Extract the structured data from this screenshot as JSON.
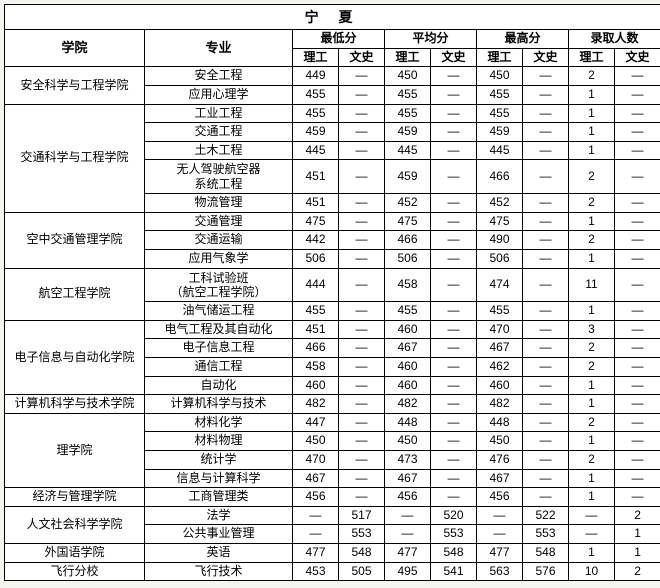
{
  "region": "宁 夏",
  "headers": {
    "college": "学院",
    "major": "专业",
    "groups": [
      "最低分",
      "平均分",
      "最高分",
      "录取人数"
    ],
    "subs": [
      "理工",
      "文史"
    ]
  },
  "colleges": [
    {
      "name": "安全科学与工程学院",
      "rows": [
        {
          "m": "安全工程",
          "v": [
            "449",
            "—",
            "450",
            "—",
            "450",
            "—",
            "2",
            "—"
          ]
        },
        {
          "m": "应用心理学",
          "v": [
            "455",
            "—",
            "455",
            "—",
            "455",
            "—",
            "1",
            "—"
          ]
        }
      ]
    },
    {
      "name": "交通科学与工程学院",
      "rows": [
        {
          "m": "工业工程",
          "v": [
            "455",
            "—",
            "455",
            "—",
            "455",
            "—",
            "1",
            "—"
          ]
        },
        {
          "m": "交通工程",
          "v": [
            "459",
            "—",
            "459",
            "—",
            "459",
            "—",
            "1",
            "—"
          ]
        },
        {
          "m": "土木工程",
          "v": [
            "445",
            "—",
            "445",
            "—",
            "445",
            "—",
            "1",
            "—"
          ]
        },
        {
          "m": "无人驾驶航空器\n系统工程",
          "ml": true,
          "v": [
            "451",
            "—",
            "459",
            "—",
            "466",
            "—",
            "2",
            "—"
          ]
        },
        {
          "m": "物流管理",
          "v": [
            "451",
            "—",
            "452",
            "—",
            "452",
            "—",
            "2",
            "—"
          ]
        }
      ]
    },
    {
      "name": "空中交通管理学院",
      "rows": [
        {
          "m": "交通管理",
          "v": [
            "475",
            "—",
            "475",
            "—",
            "475",
            "—",
            "1",
            "—"
          ]
        },
        {
          "m": "交通运输",
          "v": [
            "442",
            "—",
            "466",
            "—",
            "490",
            "—",
            "2",
            "—"
          ]
        },
        {
          "m": "应用气象学",
          "v": [
            "506",
            "—",
            "506",
            "—",
            "506",
            "—",
            "1",
            "—"
          ]
        }
      ]
    },
    {
      "name": "航空工程学院",
      "rows": [
        {
          "m": "工科试验班\n（航空工程学院）",
          "ml": true,
          "v": [
            "444",
            "—",
            "458",
            "—",
            "474",
            "—",
            "11",
            "—"
          ]
        },
        {
          "m": "油气储运工程",
          "v": [
            "455",
            "—",
            "455",
            "—",
            "455",
            "—",
            "1",
            "—"
          ]
        }
      ]
    },
    {
      "name": "电子信息与自动化学院",
      "rows": [
        {
          "m": "电气工程及其自动化",
          "v": [
            "451",
            "—",
            "460",
            "—",
            "470",
            "—",
            "3",
            "—"
          ]
        },
        {
          "m": "电子信息工程",
          "v": [
            "466",
            "—",
            "467",
            "—",
            "467",
            "—",
            "2",
            "—"
          ]
        },
        {
          "m": "通信工程",
          "v": [
            "458",
            "—",
            "460",
            "—",
            "462",
            "—",
            "2",
            "—"
          ]
        },
        {
          "m": "自动化",
          "v": [
            "460",
            "—",
            "460",
            "—",
            "460",
            "—",
            "1",
            "—"
          ]
        }
      ]
    },
    {
      "name": "计算机科学与技术学院",
      "rows": [
        {
          "m": "计算机科学与技术",
          "v": [
            "482",
            "—",
            "482",
            "—",
            "482",
            "—",
            "1",
            "—"
          ]
        }
      ]
    },
    {
      "name": "理学院",
      "rows": [
        {
          "m": "材料化学",
          "v": [
            "447",
            "—",
            "448",
            "—",
            "448",
            "—",
            "2",
            "—"
          ]
        },
        {
          "m": "材料物理",
          "v": [
            "450",
            "—",
            "450",
            "—",
            "450",
            "—",
            "1",
            "—"
          ]
        },
        {
          "m": "统计学",
          "v": [
            "470",
            "—",
            "473",
            "—",
            "476",
            "—",
            "2",
            "—"
          ]
        },
        {
          "m": "信息与计算科学",
          "v": [
            "467",
            "—",
            "467",
            "—",
            "467",
            "—",
            "1",
            "—"
          ]
        }
      ]
    },
    {
      "name": "经济与管理学院",
      "rows": [
        {
          "m": "工商管理类",
          "v": [
            "456",
            "—",
            "456",
            "—",
            "456",
            "—",
            "1",
            "—"
          ]
        }
      ]
    },
    {
      "name": "人文社会科学学院",
      "rows": [
        {
          "m": "法学",
          "v": [
            "—",
            "517",
            "—",
            "520",
            "—",
            "522",
            "—",
            "2"
          ]
        },
        {
          "m": "公共事业管理",
          "v": [
            "—",
            "553",
            "—",
            "553",
            "—",
            "553",
            "—",
            "1"
          ]
        }
      ]
    },
    {
      "name": "外国语学院",
      "rows": [
        {
          "m": "英语",
          "v": [
            "477",
            "548",
            "477",
            "548",
            "477",
            "548",
            "1",
            "1"
          ]
        }
      ]
    },
    {
      "name": "飞行分校",
      "rows": [
        {
          "m": "飞行技术",
          "v": [
            "453",
            "505",
            "495",
            "541",
            "563",
            "576",
            "10",
            "2"
          ]
        }
      ]
    }
  ]
}
